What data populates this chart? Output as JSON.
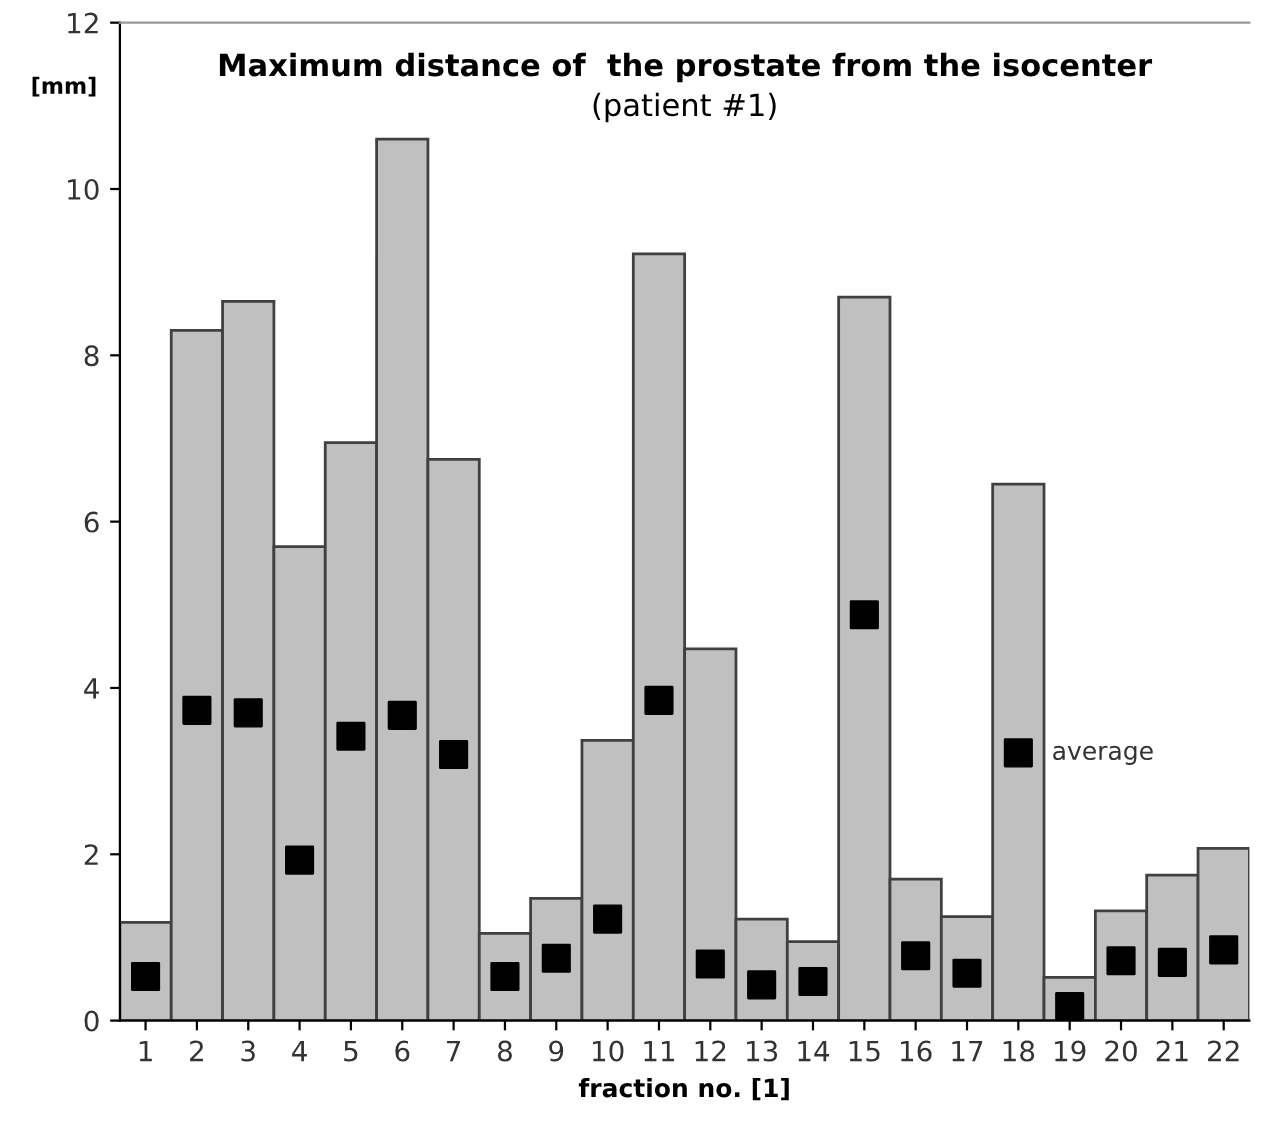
{
  "chart_data": {
    "type": "bar",
    "title": "Maximum distance of  the prostate from the isocenter",
    "subtitle": "(patient #1)",
    "xlabel": "fraction no. [1]",
    "ylabel": "[mm]",
    "categories": [
      "1",
      "2",
      "3",
      "4",
      "5",
      "6",
      "7",
      "8",
      "9",
      "10",
      "11",
      "12",
      "13",
      "14",
      "15",
      "16",
      "17",
      "18",
      "19",
      "20",
      "21",
      "22"
    ],
    "series": [
      {
        "color": "#c0c0c0",
        "values": [
          1.18,
          8.3,
          8.65,
          5.7,
          6.95,
          10.6,
          6.75,
          1.05,
          1.47,
          3.37,
          9.22,
          4.47,
          1.22,
          0.95,
          8.7,
          1.7,
          1.25,
          6.45,
          0.52,
          1.32,
          1.75,
          2.07
        ]
      },
      {
        "type": "scatter",
        "color": "#000000",
        "marker": "square",
        "values": [
          0.53,
          3.73,
          3.7,
          1.93,
          3.42,
          3.67,
          3.2,
          0.53,
          0.75,
          1.22,
          3.85,
          0.68,
          0.43,
          0.47,
          4.88,
          0.78,
          0.57,
          3.22,
          0.17,
          0.72,
          0.7,
          0.85
        ]
      }
    ],
    "annotations": [
      {
        "text": "average",
        "x": "18",
        "y": 3.22
      }
    ],
    "ylim": [
      0,
      12
    ],
    "yticks": [
      0,
      2,
      4,
      6,
      8,
      10,
      12
    ],
    "grid": false,
    "legend": false
  }
}
